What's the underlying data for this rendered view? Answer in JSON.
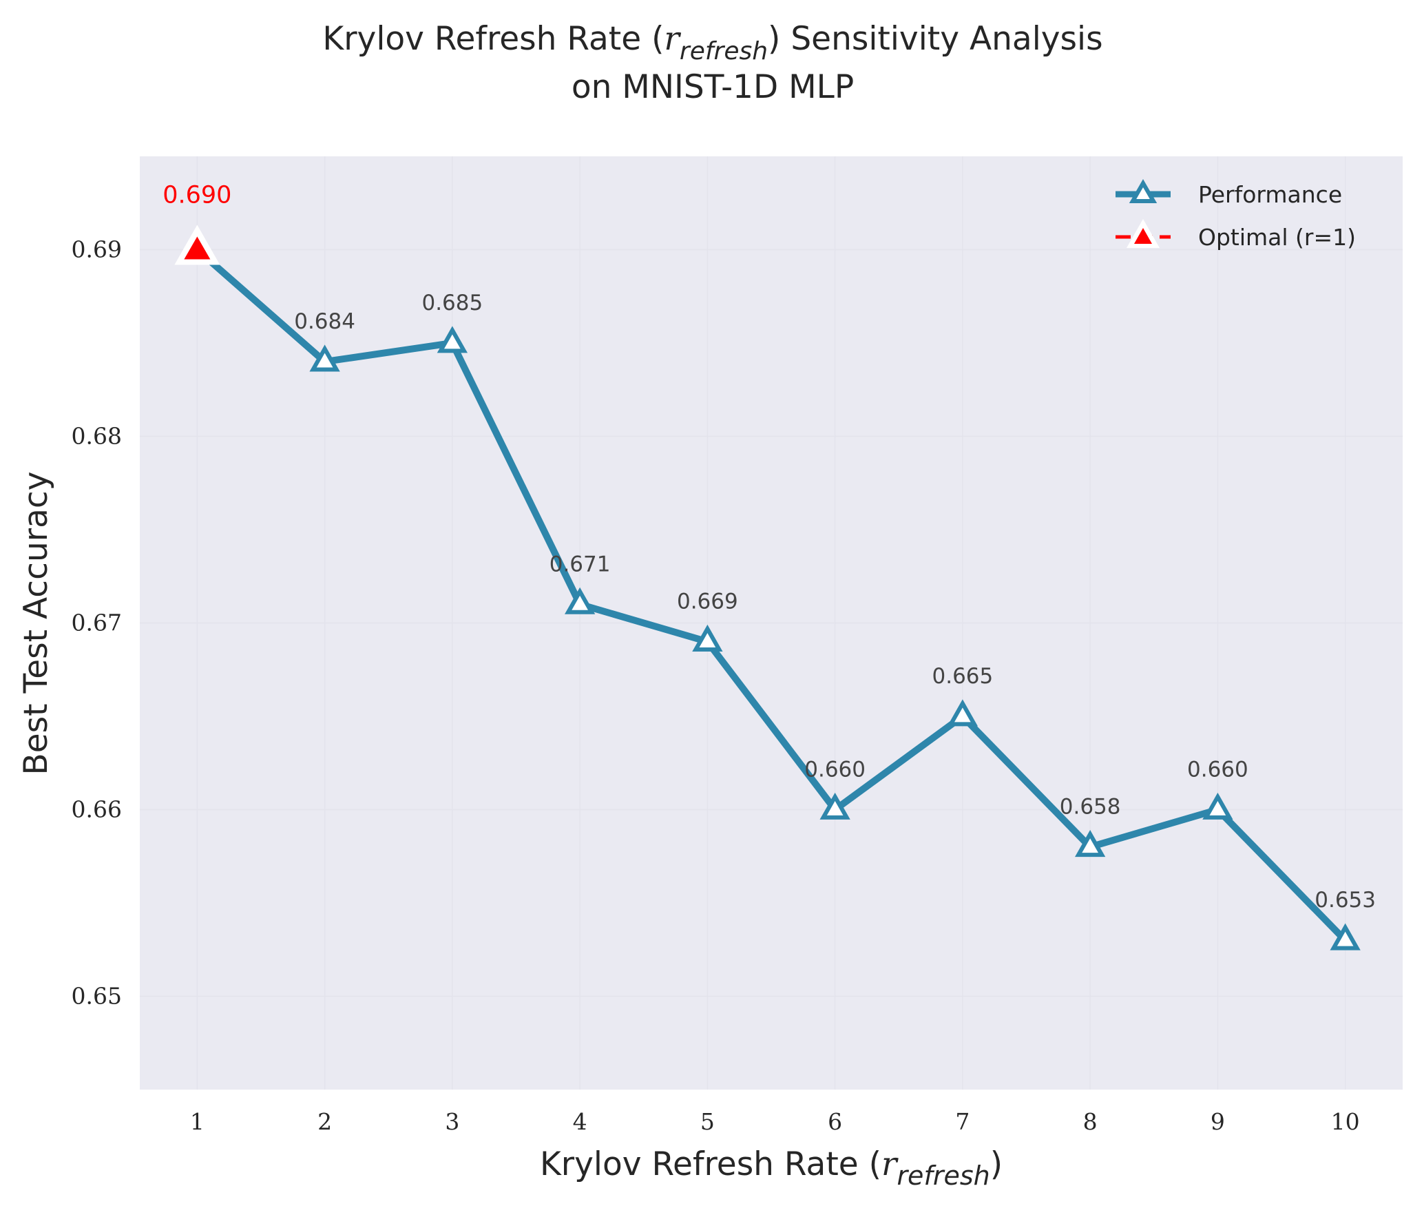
{
  "chart_data": {
    "type": "line",
    "title_line1_pre": "Krylov Refresh Rate (",
    "title_var": "r",
    "title_sub": "refresh",
    "title_line1_post": ") Sensitivity Analysis",
    "title_line2": "on MNIST-1D MLP",
    "xlabel_pre": "Krylov Refresh Rate (",
    "xlabel_var": "r",
    "xlabel_sub": "refresh",
    "xlabel_post": ")",
    "ylabel": "Best Test Accuracy",
    "x": [
      1,
      2,
      3,
      4,
      5,
      6,
      7,
      8,
      9,
      10
    ],
    "xticks": [
      "1",
      "2",
      "3",
      "4",
      "5",
      "6",
      "7",
      "8",
      "9",
      "10"
    ],
    "yticks": [
      "0.65",
      "0.66",
      "0.67",
      "0.68",
      "0.69"
    ],
    "ytick_values": [
      0.65,
      0.66,
      0.67,
      0.68,
      0.69
    ],
    "xlim": [
      0.55,
      10.45
    ],
    "ylim": [
      0.645,
      0.695
    ],
    "series": [
      {
        "name": "Performance",
        "values": [
          0.69,
          0.684,
          0.685,
          0.671,
          0.669,
          0.66,
          0.665,
          0.658,
          0.66,
          0.653
        ],
        "labels": [
          "0.690",
          "0.684",
          "0.685",
          "0.671",
          "0.669",
          "0.660",
          "0.665",
          "0.658",
          "0.660",
          "0.653"
        ],
        "color": "#2e86ab",
        "marker": "triangle-open"
      },
      {
        "name": "Optimal (r=1)",
        "x": 1,
        "value": 0.69,
        "color": "#ff0000",
        "marker": "triangle-filled"
      }
    ],
    "grid": true,
    "legend_position": "top-right",
    "background_color": "#eaeaf2"
  }
}
